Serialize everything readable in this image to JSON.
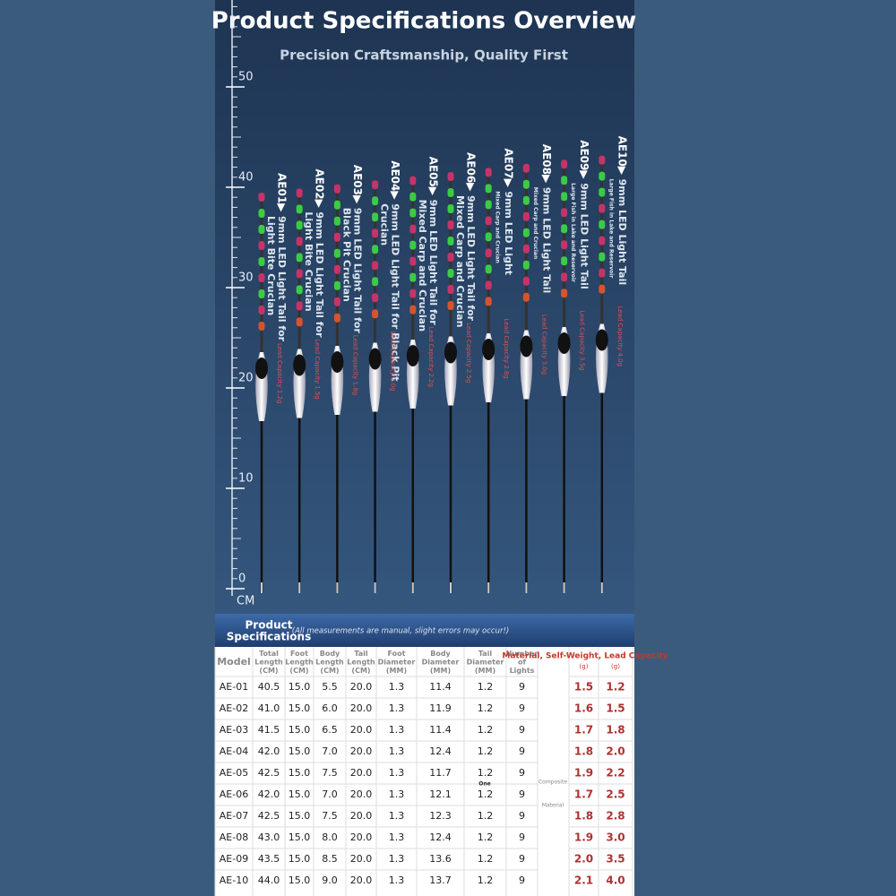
{
  "header": {
    "title": "Product Specifications Overview",
    "subtitle": "Precision Craftsmanship, Quality First"
  },
  "ruler": {
    "ticks": [
      0,
      10,
      20,
      30,
      40,
      50
    ],
    "unit": "CM"
  },
  "floats": [
    {
      "model": "AE01▶",
      "desc": [
        "9mm LED Light Tail for",
        "Light Bite Crucian"
      ],
      "lead": "Lead Capacity 1.2g"
    },
    {
      "model": "AE02▶",
      "desc": [
        "9mm LED Light Tail for",
        "Light Bite Crucian"
      ],
      "lead": "Lead Capacity 1.5g"
    },
    {
      "model": "AE03▶",
      "desc": [
        "9mm LED Light Tail for",
        "Black Pit Crucian"
      ],
      "lead": "Lead Capacity 1.8g"
    },
    {
      "model": "AE04▶",
      "desc": [
        "9mm LED Light Tail for Black Pit",
        "Crucian"
      ],
      "lead": "Lead Capacity 2.0g"
    },
    {
      "model": "AE05▶",
      "desc": [
        "9mm LED Light Tail for",
        "Mixed Carp and Crucian"
      ],
      "lead": "Lead Capacity 2.2g"
    },
    {
      "model": "AE06▶",
      "desc": [
        "9mm LED Light Tail for",
        "Mixed Carp and Crucian"
      ],
      "lead": "Lead Capacity 2.5g"
    },
    {
      "model": "AE07▶",
      "desc": [
        "9mm LED Light",
        "Mixed Carp and Crucian"
      ],
      "lead": "Lead Capacity 2.8g"
    },
    {
      "model": "AE08▶",
      "desc": [
        "9mm LED Light Tail",
        "Mixed Carp and Crucian"
      ],
      "lead": "Lead Capacity 3.0g"
    },
    {
      "model": "AE09▶",
      "desc": [
        "9mm LED Light Tail",
        "Large Fish in Lake and Reservoir"
      ],
      "lead": "Lead Capacity 3.5g"
    },
    {
      "model": "AE10▶",
      "desc": [
        "9mm LED Light Tail",
        "Large Fish in Lake and Reservoir"
      ],
      "lead": "Lead Capacity 4.0g"
    }
  ],
  "table": {
    "title": [
      "Product",
      "Specifications"
    ],
    "note": "(All measurements are manual, slight errors may occur!)",
    "columns": [
      "Model",
      "Total Length (CM)",
      "Foot Length (CM)",
      "Body Length (CM)",
      "Tail Length (CM)",
      "Foot Diameter (MM)",
      "Body Diameter (MM)",
      "Tail Diameter (MM)",
      "Number of Lights"
    ],
    "group_header": "Material, Self-Weight, Lead Capacity",
    "units": [
      "(g)",
      "(g)"
    ],
    "material": [
      "One",
      "Composite",
      "Material"
    ],
    "rows": [
      [
        "AE-01",
        "40.5",
        "15.0",
        "5.5",
        "20.0",
        "1.3",
        "11.4",
        "1.2",
        "9",
        "1.5",
        "1.2"
      ],
      [
        "AE-02",
        "41.0",
        "15.0",
        "6.0",
        "20.0",
        "1.3",
        "11.9",
        "1.2",
        "9",
        "1.6",
        "1.5"
      ],
      [
        "AE-03",
        "41.5",
        "15.0",
        "6.5",
        "20.0",
        "1.3",
        "11.4",
        "1.2",
        "9",
        "1.7",
        "1.8"
      ],
      [
        "AE-04",
        "42.0",
        "15.0",
        "7.0",
        "20.0",
        "1.3",
        "12.4",
        "1.2",
        "9",
        "1.8",
        "2.0"
      ],
      [
        "AE-05",
        "42.5",
        "15.0",
        "7.5",
        "20.0",
        "1.3",
        "11.7",
        "1.2",
        "9",
        "1.9",
        "2.2"
      ],
      [
        "AE-06",
        "42.0",
        "15.0",
        "7.0",
        "20.0",
        "1.3",
        "12.1",
        "1.2",
        "9",
        "1.7",
        "2.5"
      ],
      [
        "AE-07",
        "42.5",
        "15.0",
        "7.5",
        "20.0",
        "1.3",
        "12.3",
        "1.2",
        "9",
        "1.8",
        "2.8"
      ],
      [
        "AE-08",
        "43.0",
        "15.0",
        "8.0",
        "20.0",
        "1.3",
        "12.4",
        "1.2",
        "9",
        "1.9",
        "3.0"
      ],
      [
        "AE-09",
        "43.5",
        "15.0",
        "8.5",
        "20.0",
        "1.3",
        "13.6",
        "1.2",
        "9",
        "2.0",
        "3.5"
      ],
      [
        "AE-10",
        "44.0",
        "15.0",
        "9.0",
        "20.0",
        "1.3",
        "13.7",
        "1.2",
        "9",
        "2.1",
        "4.0"
      ]
    ]
  }
}
